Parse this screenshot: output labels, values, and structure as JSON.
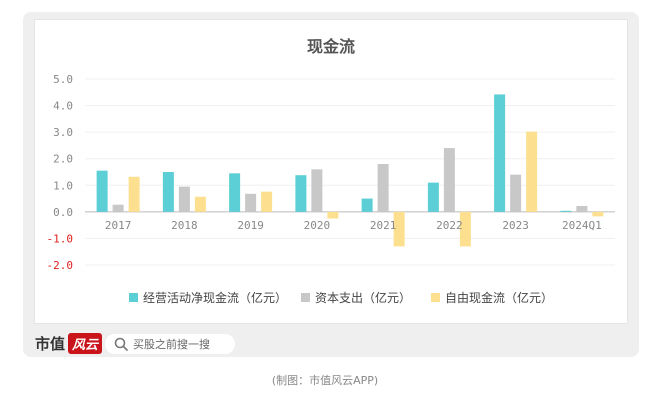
{
  "chart_data": {
    "type": "bar",
    "title": "现金流",
    "categories": [
      "2017",
      "2018",
      "2019",
      "2020",
      "2021",
      "2022",
      "2023",
      "2024Q1"
    ],
    "series": [
      {
        "name": "经营活动净现金流（亿元）",
        "color": "#5ccfd6",
        "values": [
          1.55,
          1.5,
          1.45,
          1.38,
          0.5,
          1.1,
          4.42,
          0.04
        ]
      },
      {
        "name": "资本支出（亿元）",
        "color": "#c8c8c8",
        "values": [
          0.27,
          0.95,
          0.68,
          1.6,
          1.8,
          2.4,
          1.4,
          0.22
        ]
      },
      {
        "name": "自由现金流（亿元）",
        "color": "#fce08f",
        "values": [
          1.32,
          0.57,
          0.76,
          -0.25,
          -1.3,
          -1.3,
          3.02,
          -0.17
        ]
      }
    ],
    "y_ticks": [
      "5.0",
      "4.0",
      "3.0",
      "2.0",
      "1.0",
      "0.0",
      "-1.0",
      "-2.0"
    ],
    "ylim": [
      -2,
      5
    ],
    "grid": true,
    "legend_position": "bottom",
    "negative_tick_color": "#e02020",
    "positive_tick_color": "#888888"
  },
  "footer": {
    "brand_name": "市值",
    "brand_logo": "风云",
    "search_placeholder": "买股之前搜一搜"
  },
  "caption": "(制图：市值风云APP)"
}
